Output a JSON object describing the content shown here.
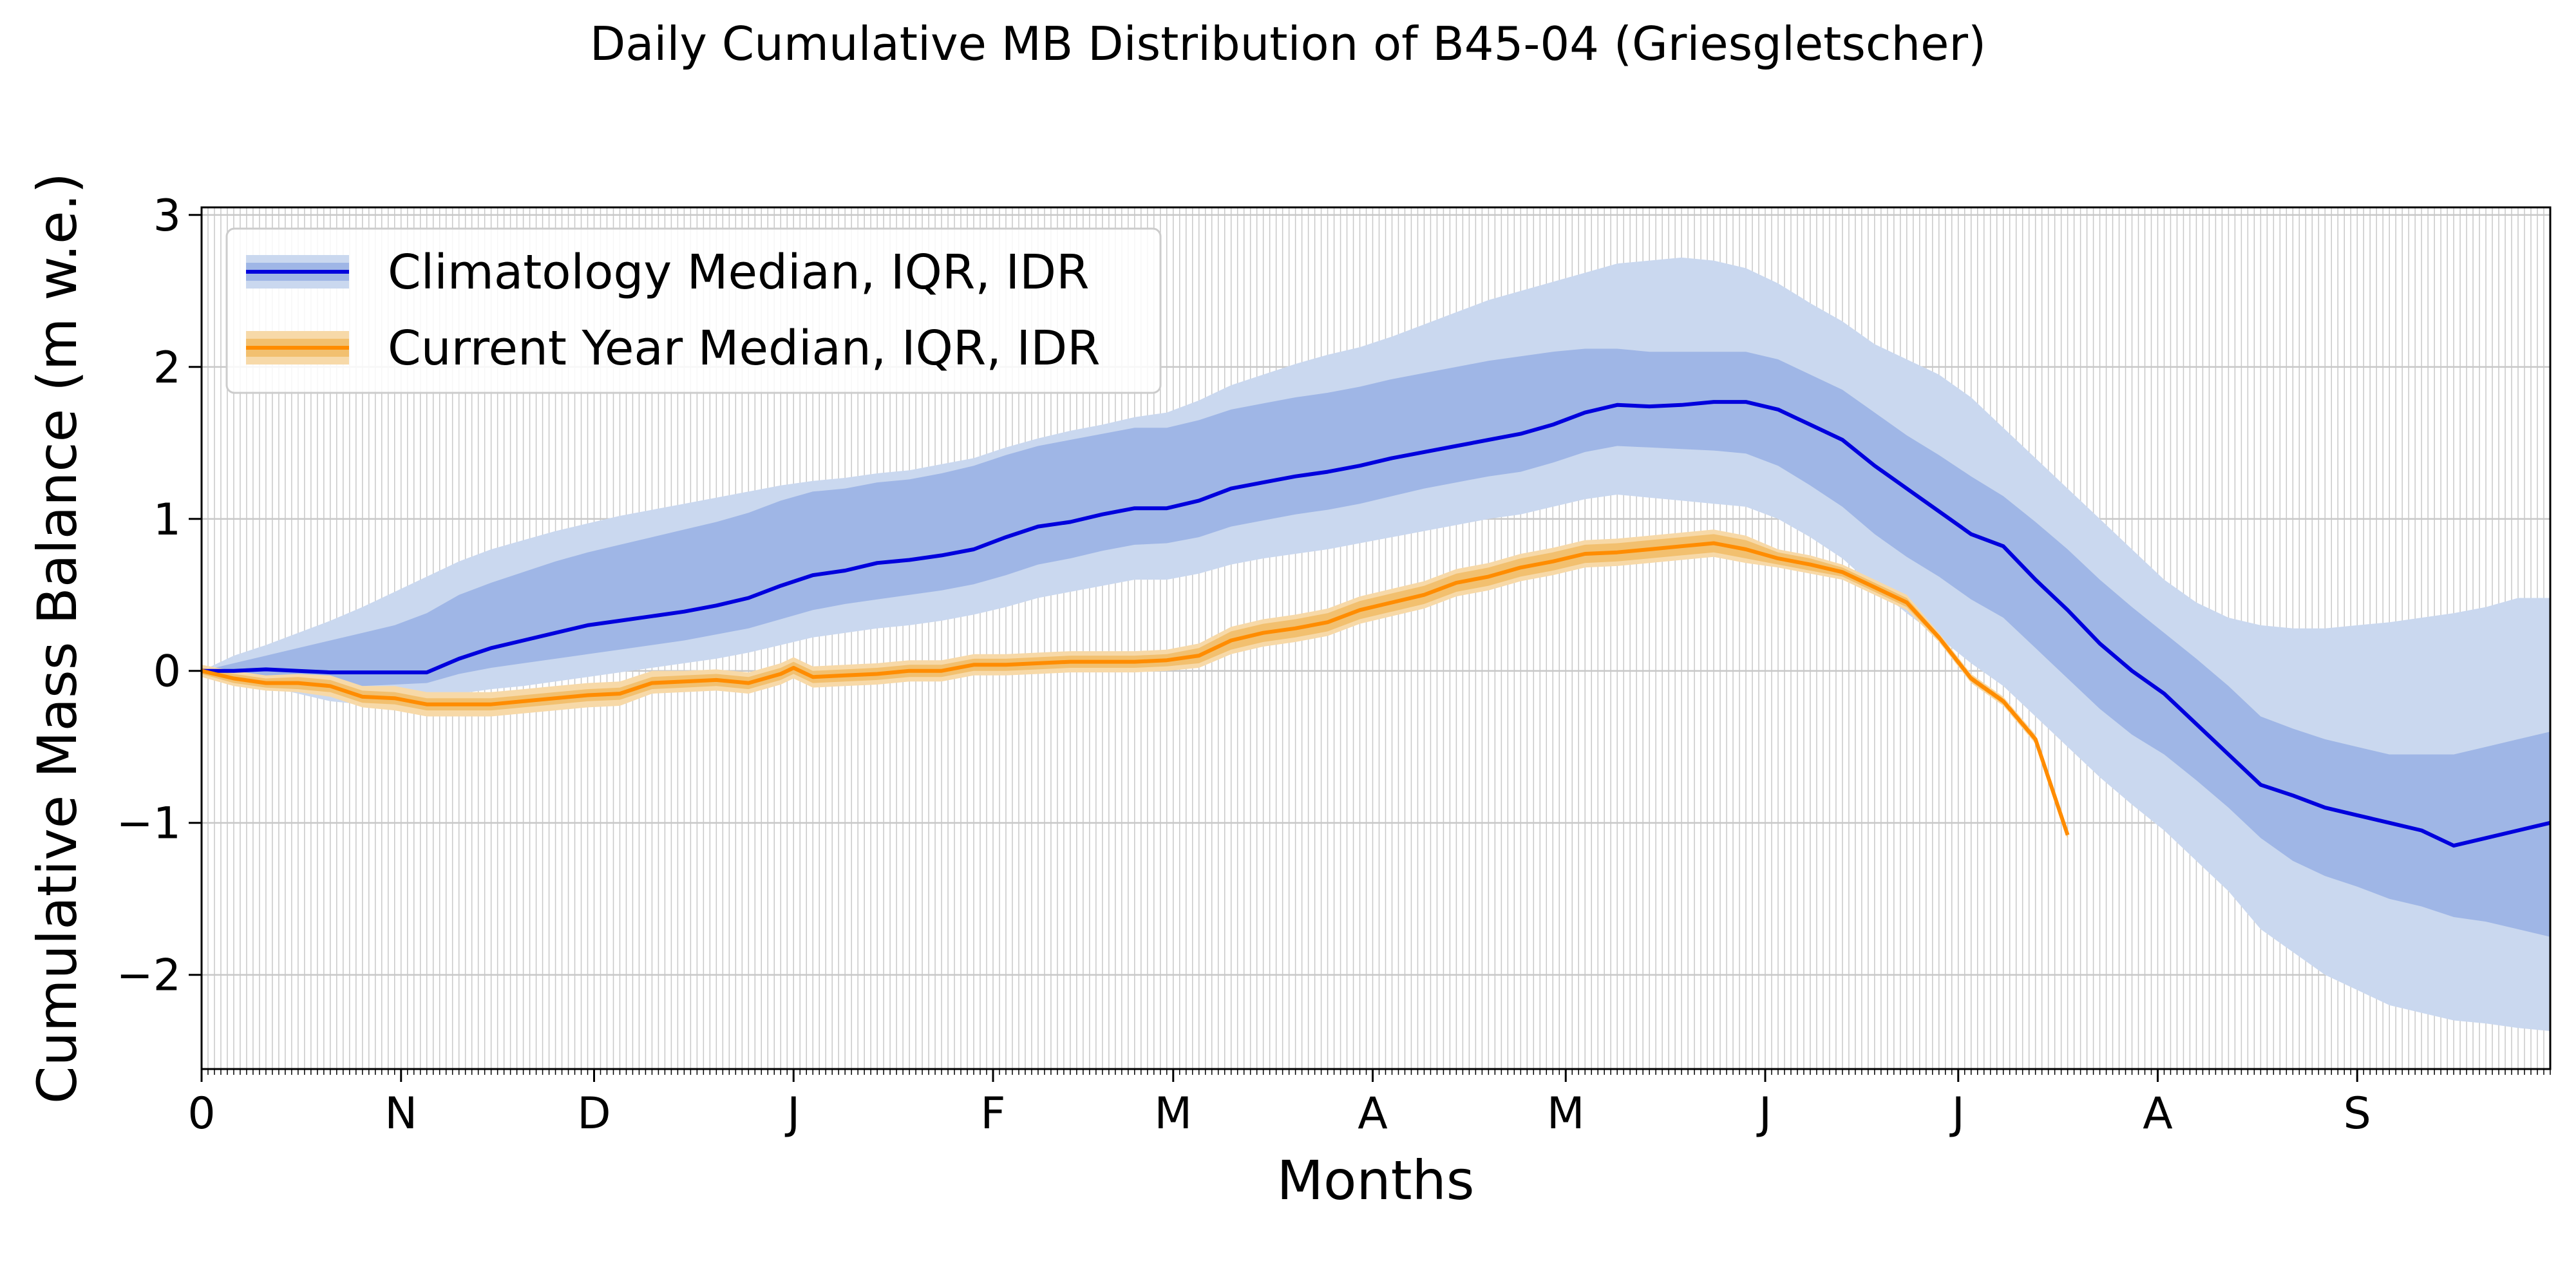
{
  "chart_data": {
    "type": "line",
    "title": "Daily Cumulative MB Distribution of B45-04 (Griesgletscher)",
    "xlabel": "Months",
    "ylabel": "Cumulative Mass Balance (m w.e.)",
    "xlim": [
      0,
      365
    ],
    "ylim": [
      -2.62,
      3.05
    ],
    "x_ticks": [
      {
        "day": 0,
        "label": "0"
      },
      {
        "day": 31,
        "label": "N"
      },
      {
        "day": 61,
        "label": "D"
      },
      {
        "day": 92,
        "label": "J"
      },
      {
        "day": 123,
        "label": "F"
      },
      {
        "day": 151,
        "label": "M"
      },
      {
        "day": 182,
        "label": "A"
      },
      {
        "day": 212,
        "label": "M"
      },
      {
        "day": 243,
        "label": "J"
      },
      {
        "day": 273,
        "label": "J"
      },
      {
        "day": 304,
        "label": "A"
      },
      {
        "day": 335,
        "label": "S"
      }
    ],
    "y_ticks": [
      {
        "value": 3,
        "label": "3"
      },
      {
        "value": 2,
        "label": "2"
      },
      {
        "value": 1,
        "label": "1"
      },
      {
        "value": 0,
        "label": "0"
      },
      {
        "value": -1,
        "label": "−1"
      },
      {
        "value": -2,
        "label": "−2"
      }
    ],
    "grid": true,
    "legend_position": "top-left",
    "series": [
      {
        "name": "Climatology Median, IQR, IDR",
        "line_color": "#0000dd",
        "iqr_color": "#9fb6e6",
        "idr_color": "#cad8ef",
        "x": [
          0,
          5,
          10,
          15,
          20,
          25,
          30,
          35,
          40,
          45,
          50,
          55,
          60,
          65,
          70,
          75,
          80,
          85,
          90,
          95,
          100,
          105,
          110,
          115,
          120,
          125,
          130,
          135,
          140,
          145,
          150,
          155,
          160,
          165,
          170,
          175,
          180,
          185,
          190,
          195,
          200,
          205,
          210,
          215,
          220,
          225,
          230,
          235,
          240,
          245,
          250,
          255,
          260,
          265,
          270,
          275,
          280,
          285,
          290,
          295,
          300,
          305,
          310,
          315,
          320,
          325,
          330,
          335,
          340,
          345,
          350,
          355,
          360,
          365
        ],
        "median": [
          0,
          0,
          0.01,
          0.0,
          -0.01,
          -0.01,
          -0.01,
          -0.01,
          0.08,
          0.15,
          0.2,
          0.25,
          0.3,
          0.33,
          0.36,
          0.39,
          0.43,
          0.48,
          0.56,
          0.63,
          0.66,
          0.71,
          0.73,
          0.76,
          0.8,
          0.88,
          0.95,
          0.98,
          1.03,
          1.07,
          1.07,
          1.12,
          1.2,
          1.24,
          1.28,
          1.31,
          1.35,
          1.4,
          1.44,
          1.48,
          1.52,
          1.56,
          1.62,
          1.7,
          1.75,
          1.74,
          1.75,
          1.77,
          1.77,
          1.72,
          1.62,
          1.52,
          1.35,
          1.2,
          1.05,
          0.9,
          0.82,
          0.6,
          0.4,
          0.18,
          0.0,
          -0.15,
          -0.35,
          -0.55,
          -0.75,
          -0.82,
          -0.9,
          -0.95,
          -1.0,
          -1.05,
          -1.15,
          -1.1,
          -1.05,
          -1.0
        ],
        "iqr_low": [
          0,
          -0.02,
          -0.05,
          -0.08,
          -0.1,
          -0.1,
          -0.09,
          -0.08,
          -0.02,
          0.02,
          0.05,
          0.08,
          0.11,
          0.14,
          0.17,
          0.2,
          0.24,
          0.28,
          0.34,
          0.4,
          0.44,
          0.47,
          0.5,
          0.53,
          0.57,
          0.63,
          0.7,
          0.74,
          0.79,
          0.83,
          0.84,
          0.88,
          0.95,
          0.99,
          1.03,
          1.06,
          1.1,
          1.15,
          1.2,
          1.24,
          1.28,
          1.31,
          1.37,
          1.44,
          1.48,
          1.47,
          1.46,
          1.45,
          1.43,
          1.35,
          1.22,
          1.08,
          0.9,
          0.75,
          0.62,
          0.47,
          0.35,
          0.15,
          -0.05,
          -0.25,
          -0.42,
          -0.55,
          -0.72,
          -0.9,
          -1.1,
          -1.25,
          -1.35,
          -1.42,
          -1.5,
          -1.55,
          -1.62,
          -1.65,
          -1.7,
          -1.75
        ],
        "iqr_high": [
          0,
          0.05,
          0.1,
          0.15,
          0.2,
          0.25,
          0.3,
          0.38,
          0.5,
          0.58,
          0.65,
          0.72,
          0.78,
          0.83,
          0.88,
          0.93,
          0.98,
          1.04,
          1.12,
          1.18,
          1.2,
          1.24,
          1.26,
          1.3,
          1.35,
          1.42,
          1.48,
          1.52,
          1.56,
          1.6,
          1.6,
          1.65,
          1.72,
          1.76,
          1.8,
          1.83,
          1.87,
          1.92,
          1.96,
          2.0,
          2.04,
          2.07,
          2.1,
          2.12,
          2.12,
          2.1,
          2.1,
          2.1,
          2.1,
          2.05,
          1.95,
          1.85,
          1.7,
          1.55,
          1.42,
          1.28,
          1.15,
          0.98,
          0.8,
          0.6,
          0.42,
          0.25,
          0.08,
          -0.1,
          -0.3,
          -0.38,
          -0.45,
          -0.5,
          -0.55,
          -0.55,
          -0.55,
          -0.5,
          -0.45,
          -0.4
        ],
        "idr_low": [
          0,
          -0.05,
          -0.1,
          -0.15,
          -0.2,
          -0.22,
          -0.22,
          -0.2,
          -0.15,
          -0.12,
          -0.1,
          -0.07,
          -0.04,
          -0.01,
          0.02,
          0.05,
          0.08,
          0.12,
          0.17,
          0.22,
          0.25,
          0.28,
          0.3,
          0.33,
          0.37,
          0.42,
          0.48,
          0.52,
          0.56,
          0.6,
          0.6,
          0.64,
          0.7,
          0.74,
          0.77,
          0.8,
          0.84,
          0.88,
          0.92,
          0.96,
          1.0,
          1.03,
          1.08,
          1.13,
          1.16,
          1.14,
          1.12,
          1.1,
          1.08,
          1.0,
          0.88,
          0.74,
          0.55,
          0.38,
          0.22,
          0.05,
          -0.1,
          -0.3,
          -0.5,
          -0.7,
          -0.88,
          -1.05,
          -1.25,
          -1.45,
          -1.7,
          -1.85,
          -2.0,
          -2.1,
          -2.2,
          -2.25,
          -2.3,
          -2.32,
          -2.35,
          -2.37
        ],
        "idr_high": [
          0,
          0.1,
          0.17,
          0.25,
          0.33,
          0.42,
          0.52,
          0.62,
          0.72,
          0.8,
          0.86,
          0.92,
          0.97,
          1.02,
          1.06,
          1.1,
          1.14,
          1.18,
          1.22,
          1.25,
          1.27,
          1.3,
          1.32,
          1.36,
          1.4,
          1.47,
          1.53,
          1.58,
          1.62,
          1.67,
          1.7,
          1.78,
          1.88,
          1.95,
          2.02,
          2.08,
          2.13,
          2.2,
          2.28,
          2.36,
          2.44,
          2.5,
          2.56,
          2.62,
          2.68,
          2.7,
          2.72,
          2.7,
          2.65,
          2.55,
          2.42,
          2.3,
          2.15,
          2.05,
          1.95,
          1.8,
          1.6,
          1.4,
          1.2,
          1.0,
          0.8,
          0.6,
          0.45,
          0.35,
          0.3,
          0.28,
          0.28,
          0.3,
          0.32,
          0.35,
          0.38,
          0.42,
          0.48,
          0.48
        ]
      },
      {
        "name": "Current Year Median, IQR, IDR",
        "line_color": "#ff8c00",
        "iqr_color": "#f2c06f",
        "idr_color": "#f7d9a8",
        "x": [
          0,
          5,
          10,
          15,
          20,
          25,
          30,
          35,
          40,
          45,
          50,
          55,
          60,
          65,
          70,
          75,
          80,
          85,
          90,
          92,
          95,
          100,
          105,
          110,
          115,
          120,
          125,
          130,
          135,
          140,
          145,
          150,
          155,
          160,
          165,
          170,
          175,
          180,
          185,
          190,
          195,
          200,
          205,
          210,
          215,
          220,
          225,
          230,
          235,
          240,
          245,
          250,
          255,
          260,
          265,
          270,
          275,
          280,
          285,
          290
        ],
        "median": [
          0.0,
          -0.05,
          -0.08,
          -0.08,
          -0.1,
          -0.17,
          -0.18,
          -0.22,
          -0.22,
          -0.22,
          -0.2,
          -0.18,
          -0.16,
          -0.15,
          -0.08,
          -0.07,
          -0.06,
          -0.08,
          -0.02,
          0.02,
          -0.04,
          -0.03,
          -0.02,
          0.0,
          0.0,
          0.04,
          0.04,
          0.05,
          0.06,
          0.06,
          0.06,
          0.07,
          0.1,
          0.2,
          0.25,
          0.28,
          0.32,
          0.4,
          0.45,
          0.5,
          0.58,
          0.62,
          0.68,
          0.72,
          0.77,
          0.78,
          0.8,
          0.82,
          0.84,
          0.8,
          0.74,
          0.7,
          0.65,
          0.55,
          0.45,
          0.22,
          -0.05,
          -0.2,
          -0.45,
          -1.08
        ],
        "iqr_low": [
          -0.02,
          -0.08,
          -0.11,
          -0.12,
          -0.14,
          -0.21,
          -0.22,
          -0.26,
          -0.26,
          -0.26,
          -0.24,
          -0.22,
          -0.2,
          -0.19,
          -0.12,
          -0.11,
          -0.1,
          -0.12,
          -0.06,
          -0.02,
          -0.08,
          -0.07,
          -0.06,
          -0.04,
          -0.04,
          0.0,
          0.0,
          0.01,
          0.02,
          0.02,
          0.02,
          0.03,
          0.05,
          0.14,
          0.19,
          0.22,
          0.26,
          0.34,
          0.39,
          0.44,
          0.52,
          0.56,
          0.62,
          0.66,
          0.71,
          0.72,
          0.74,
          0.76,
          0.78,
          0.74,
          0.7,
          0.66,
          0.62,
          0.52,
          0.42,
          0.2,
          -0.07,
          -0.22,
          -0.47,
          -1.1
        ],
        "iqr_high": [
          0.02,
          -0.02,
          -0.05,
          -0.04,
          -0.06,
          -0.13,
          -0.14,
          -0.18,
          -0.18,
          -0.18,
          -0.16,
          -0.14,
          -0.12,
          -0.11,
          -0.04,
          -0.03,
          -0.02,
          -0.04,
          0.02,
          0.06,
          0.0,
          0.01,
          0.02,
          0.04,
          0.04,
          0.08,
          0.08,
          0.09,
          0.1,
          0.1,
          0.1,
          0.11,
          0.15,
          0.26,
          0.31,
          0.34,
          0.38,
          0.46,
          0.51,
          0.56,
          0.64,
          0.68,
          0.74,
          0.78,
          0.83,
          0.84,
          0.86,
          0.88,
          0.9,
          0.86,
          0.78,
          0.74,
          0.68,
          0.58,
          0.48,
          0.24,
          -0.03,
          -0.18,
          -0.43,
          -1.06
        ],
        "idr_low": [
          -0.04,
          -0.1,
          -0.13,
          -0.14,
          -0.17,
          -0.24,
          -0.26,
          -0.3,
          -0.3,
          -0.3,
          -0.28,
          -0.26,
          -0.24,
          -0.23,
          -0.15,
          -0.14,
          -0.13,
          -0.15,
          -0.09,
          -0.05,
          -0.11,
          -0.1,
          -0.09,
          -0.07,
          -0.07,
          -0.03,
          -0.03,
          -0.02,
          -0.01,
          -0.01,
          -0.01,
          0.0,
          0.02,
          0.11,
          0.16,
          0.19,
          0.23,
          0.31,
          0.36,
          0.41,
          0.49,
          0.53,
          0.59,
          0.63,
          0.68,
          0.69,
          0.71,
          0.73,
          0.75,
          0.71,
          0.68,
          0.64,
          0.6,
          0.5,
          0.4,
          0.19,
          -0.08,
          -0.23,
          -0.48,
          -1.11
        ],
        "idr_high": [
          0.04,
          0.0,
          -0.03,
          -0.02,
          -0.03,
          -0.1,
          -0.1,
          -0.14,
          -0.14,
          -0.14,
          -0.12,
          -0.1,
          -0.08,
          -0.07,
          0.0,
          0.0,
          0.01,
          -0.01,
          0.05,
          0.09,
          0.03,
          0.04,
          0.05,
          0.07,
          0.07,
          0.11,
          0.11,
          0.12,
          0.13,
          0.13,
          0.13,
          0.14,
          0.18,
          0.29,
          0.34,
          0.37,
          0.41,
          0.49,
          0.54,
          0.59,
          0.67,
          0.71,
          0.77,
          0.81,
          0.86,
          0.87,
          0.89,
          0.91,
          0.93,
          0.89,
          0.8,
          0.76,
          0.7,
          0.6,
          0.5,
          0.25,
          -0.02,
          -0.17,
          -0.42,
          -1.05
        ]
      }
    ]
  }
}
